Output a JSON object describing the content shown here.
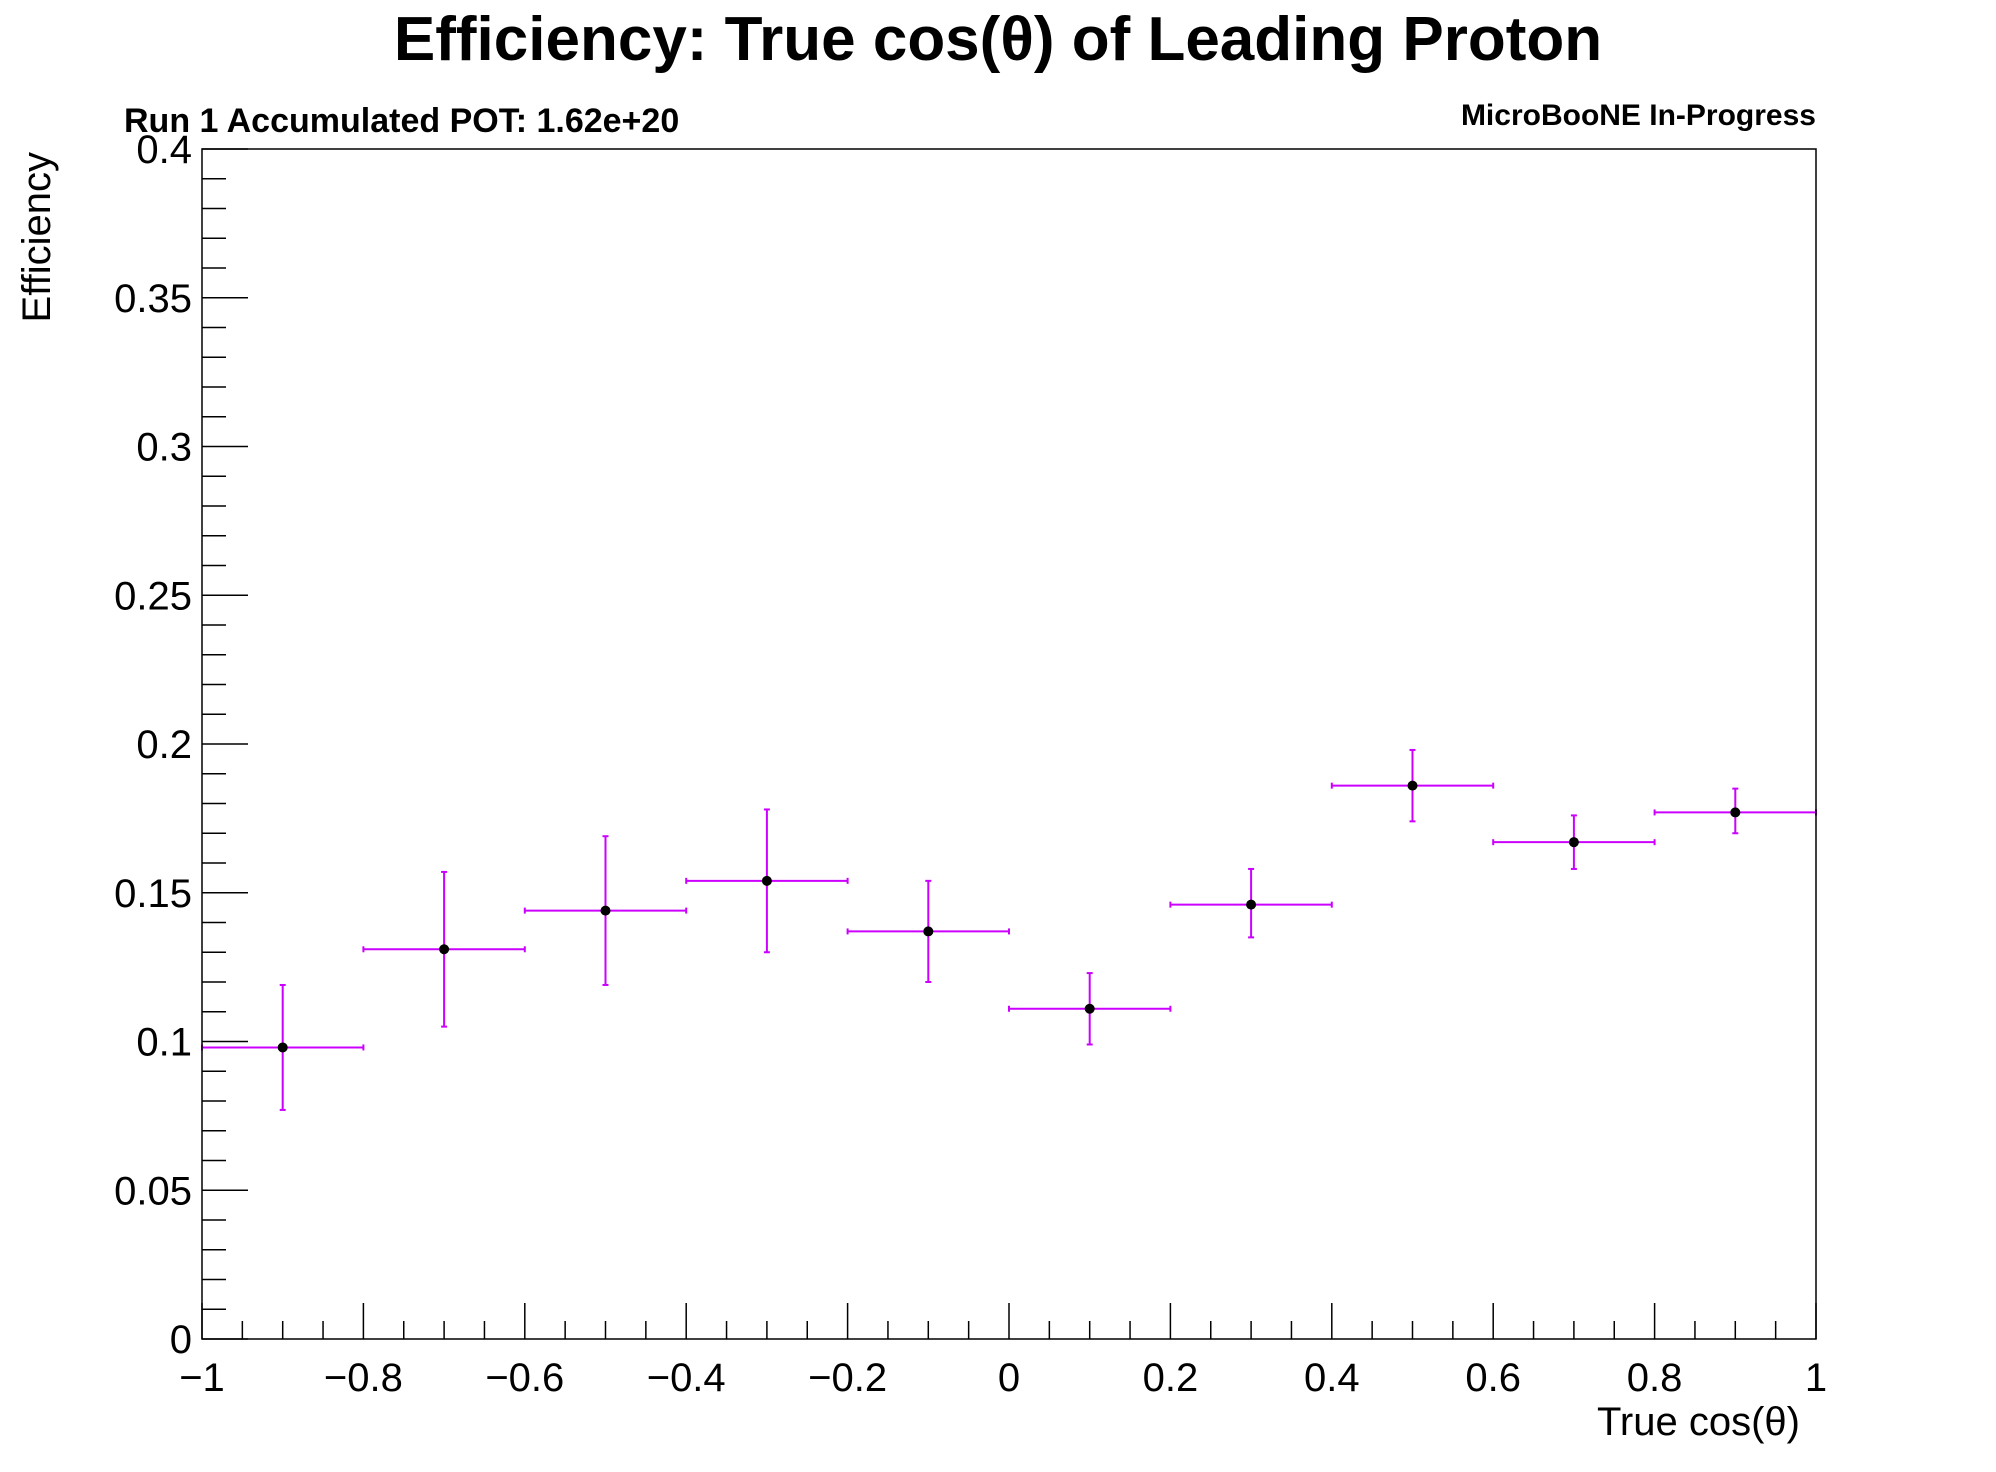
{
  "chart_data": {
    "type": "scatter",
    "title": "Efficiency: True cos(θ) of Leading Proton",
    "subtitle_left": "Run 1 Accumulated POT: 1.62e+20",
    "subtitle_right": "MicroBooNE In-Progress",
    "xlabel": "True cos(θ)",
    "ylabel": "Efficiency",
    "xlim": [
      -1,
      1
    ],
    "ylim": [
      0,
      0.4
    ],
    "x_ticks": [
      -1,
      -0.8,
      -0.6,
      -0.4,
      -0.2,
      0,
      0.2,
      0.4,
      0.6,
      0.8,
      1
    ],
    "x_tick_labels": [
      "−1",
      "−0.8",
      "−0.6",
      "−0.4",
      "−0.2",
      "0",
      "0.2",
      "0.4",
      "0.6",
      "0.8",
      "1"
    ],
    "y_ticks": [
      0,
      0.05,
      0.1,
      0.15,
      0.2,
      0.25,
      0.3,
      0.35,
      0.4
    ],
    "y_tick_labels": [
      "0",
      "0.05",
      "0.1",
      "0.15",
      "0.2",
      "0.25",
      "0.3",
      "0.35",
      "0.4"
    ],
    "grid": false,
    "series": [
      {
        "color": "#cc00ff",
        "marker_color": "#000000",
        "x": [
          -0.9,
          -0.7,
          -0.5,
          -0.3,
          -0.1,
          0.1,
          0.3,
          0.5,
          0.7,
          0.9
        ],
        "x_err": [
          0.1,
          0.1,
          0.1,
          0.1,
          0.1,
          0.1,
          0.1,
          0.1,
          0.1,
          0.1
        ],
        "y": [
          0.098,
          0.131,
          0.144,
          0.154,
          0.137,
          0.111,
          0.146,
          0.186,
          0.167,
          0.177
        ],
        "y_err_low": [
          0.021,
          0.026,
          0.025,
          0.024,
          0.017,
          0.012,
          0.011,
          0.012,
          0.009,
          0.007
        ],
        "y_err_high": [
          0.021,
          0.026,
          0.025,
          0.024,
          0.017,
          0.012,
          0.012,
          0.012,
          0.009,
          0.008
        ]
      }
    ]
  }
}
